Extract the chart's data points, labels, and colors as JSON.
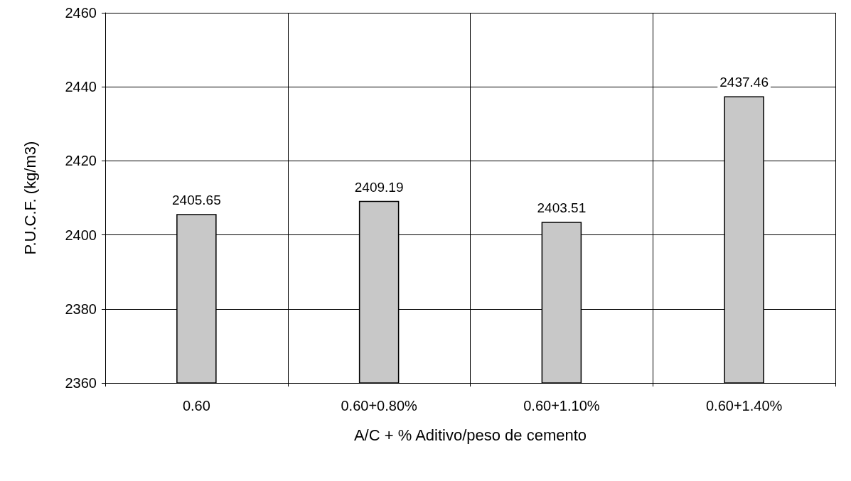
{
  "chart_data": {
    "type": "bar",
    "xlabel": "A/C + % Aditivo/peso de cemento",
    "ylabel": "P.U.C.F. (kg/m3)",
    "categories": [
      "0.60",
      "0.60+0.80%",
      "0.60+1.10%",
      "0.60+1.40%"
    ],
    "values": [
      2405.65,
      2409.19,
      2403.51,
      2437.46
    ],
    "color": "#c8c8c8",
    "ylim": [
      2360,
      2460
    ],
    "yticks": [
      2360,
      2380,
      2400,
      2420,
      2440,
      2460
    ],
    "grid": true,
    "data_labels": true
  }
}
